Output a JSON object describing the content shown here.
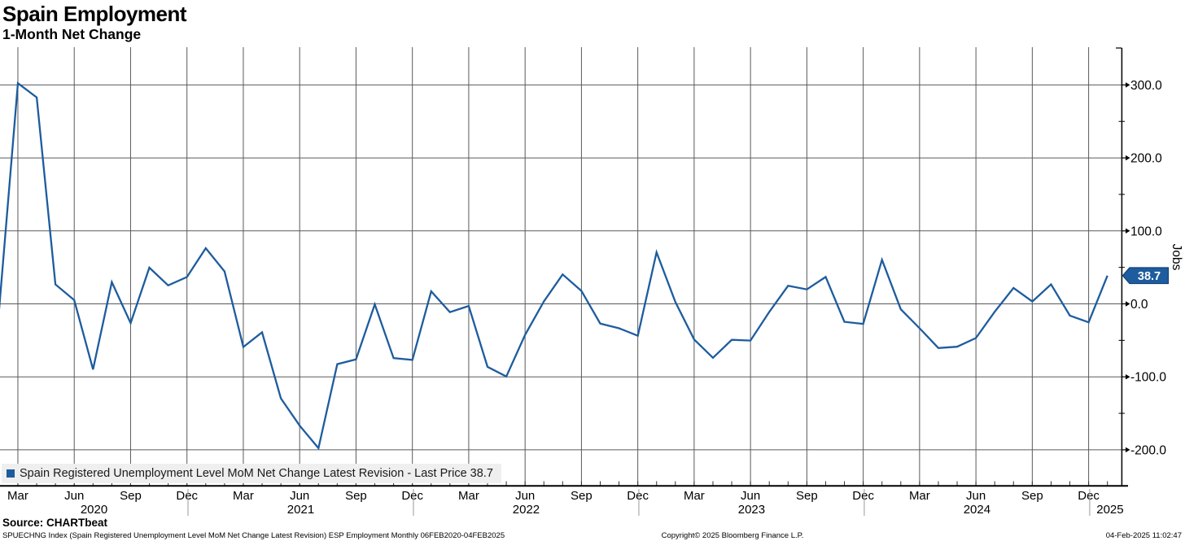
{
  "header": {
    "title": "Spain Employment",
    "subtitle": "1-Month Net Change"
  },
  "legend": {
    "label": "Spain Registered Unemployment Level MoM Net Change Latest Revision - Last Price 38.7"
  },
  "y_axis": {
    "label": "Jobs",
    "tick_labels": [
      "300.0",
      "200.0",
      "100.0",
      "0.0",
      "-100.0",
      "-200.0"
    ],
    "last_price_label": "38.7"
  },
  "x_axis": {
    "quarter_labels": [
      "Mar",
      "Jun",
      "Sep",
      "Dec",
      "Mar",
      "Jun",
      "Sep",
      "Dec",
      "Mar",
      "Jun",
      "Sep",
      "Dec",
      "Mar",
      "Jun",
      "Sep",
      "Dec",
      "Mar",
      "Jun",
      "Sep",
      "Dec"
    ],
    "year_labels": [
      "2020",
      "2021",
      "2022",
      "2023",
      "2024",
      "2025"
    ]
  },
  "footer": {
    "source": "Source: CHARTbeat",
    "description": "SPUECHNG Index (Spain Registered Unemployment Level MoM Net Change Latest Revision) ESP Employment  Monthly 06FEB2020-04FEB2025",
    "copyright": "Copyright© 2025 Bloomberg Finance L.P.",
    "timestamp": "04-Feb-2025 11:02:47"
  },
  "colors": {
    "line": "#1d5c9e",
    "tag_bg": "#1d5c9e",
    "tag_border": "#123f73",
    "tag_text": "#ffffff",
    "grid": "#5a5a5a",
    "axis": "#000000",
    "legend_bg": "#efefef",
    "year_separator": "#999999"
  },
  "chart_data": {
    "type": "line",
    "title": "Spain Employment",
    "subtitle": "1-Month Net Change",
    "ylabel": "Jobs",
    "ylim": [
      -249,
      351
    ],
    "yticks": [
      300,
      200,
      100,
      0,
      -100,
      -200
    ],
    "ytick_minor": [
      250,
      150,
      50,
      -50,
      -150
    ],
    "grid": true,
    "legend_position": "bottom-left",
    "frequency": "Monthly",
    "date_range": "06FEB2020-04FEB2025",
    "last_price": 38.7,
    "series": [
      {
        "name": "Spain Registered Unemployment Level MoM Net Change Latest Revision",
        "x": [
          "2020-02",
          "2020-03",
          "2020-04",
          "2020-05",
          "2020-06",
          "2020-07",
          "2020-08",
          "2020-09",
          "2020-10",
          "2020-11",
          "2020-12",
          "2021-01",
          "2021-02",
          "2021-03",
          "2021-04",
          "2021-05",
          "2021-06",
          "2021-07",
          "2021-08",
          "2021-09",
          "2021-10",
          "2021-11",
          "2021-12",
          "2022-01",
          "2022-02",
          "2022-03",
          "2022-04",
          "2022-05",
          "2022-06",
          "2022-07",
          "2022-08",
          "2022-09",
          "2022-10",
          "2022-11",
          "2022-12",
          "2023-01",
          "2023-02",
          "2023-03",
          "2023-04",
          "2023-05",
          "2023-06",
          "2023-07",
          "2023-08",
          "2023-09",
          "2023-10",
          "2023-11",
          "2023-12",
          "2024-01",
          "2024-02",
          "2024-03",
          "2024-04",
          "2024-05",
          "2024-06",
          "2024-07",
          "2024-08",
          "2024-09",
          "2024-10",
          "2024-11",
          "2024-12",
          "2025-01"
        ],
        "values": [
          -7.8,
          302.3,
          282.9,
          26.6,
          5.1,
          -89.8,
          29.8,
          -26.3,
          49.6,
          25.3,
          36.8,
          76.2,
          44.4,
          -59.1,
          -39.0,
          -129.4,
          -166.9,
          -197.8,
          -82.6,
          -76.1,
          -0.7,
          -74.4,
          -76.8,
          17.2,
          -11.4,
          -2.9,
          -86.3,
          -99.5,
          -42.4,
          3.2,
          40.4,
          17.7,
          -27.0,
          -33.5,
          -43.7,
          70.7,
          2.6,
          -48.8,
          -73.9,
          -49.3,
          -50.3,
          -11.0,
          24.8,
          19.8,
          36.9,
          -24.6,
          -27.4,
          60.4,
          -7.5,
          -33.4,
          -60.5,
          -58.7,
          -46.8,
          -10.8,
          21.9,
          3.2,
          26.8,
          -16.0,
          -25.3,
          38.7
        ]
      }
    ]
  }
}
